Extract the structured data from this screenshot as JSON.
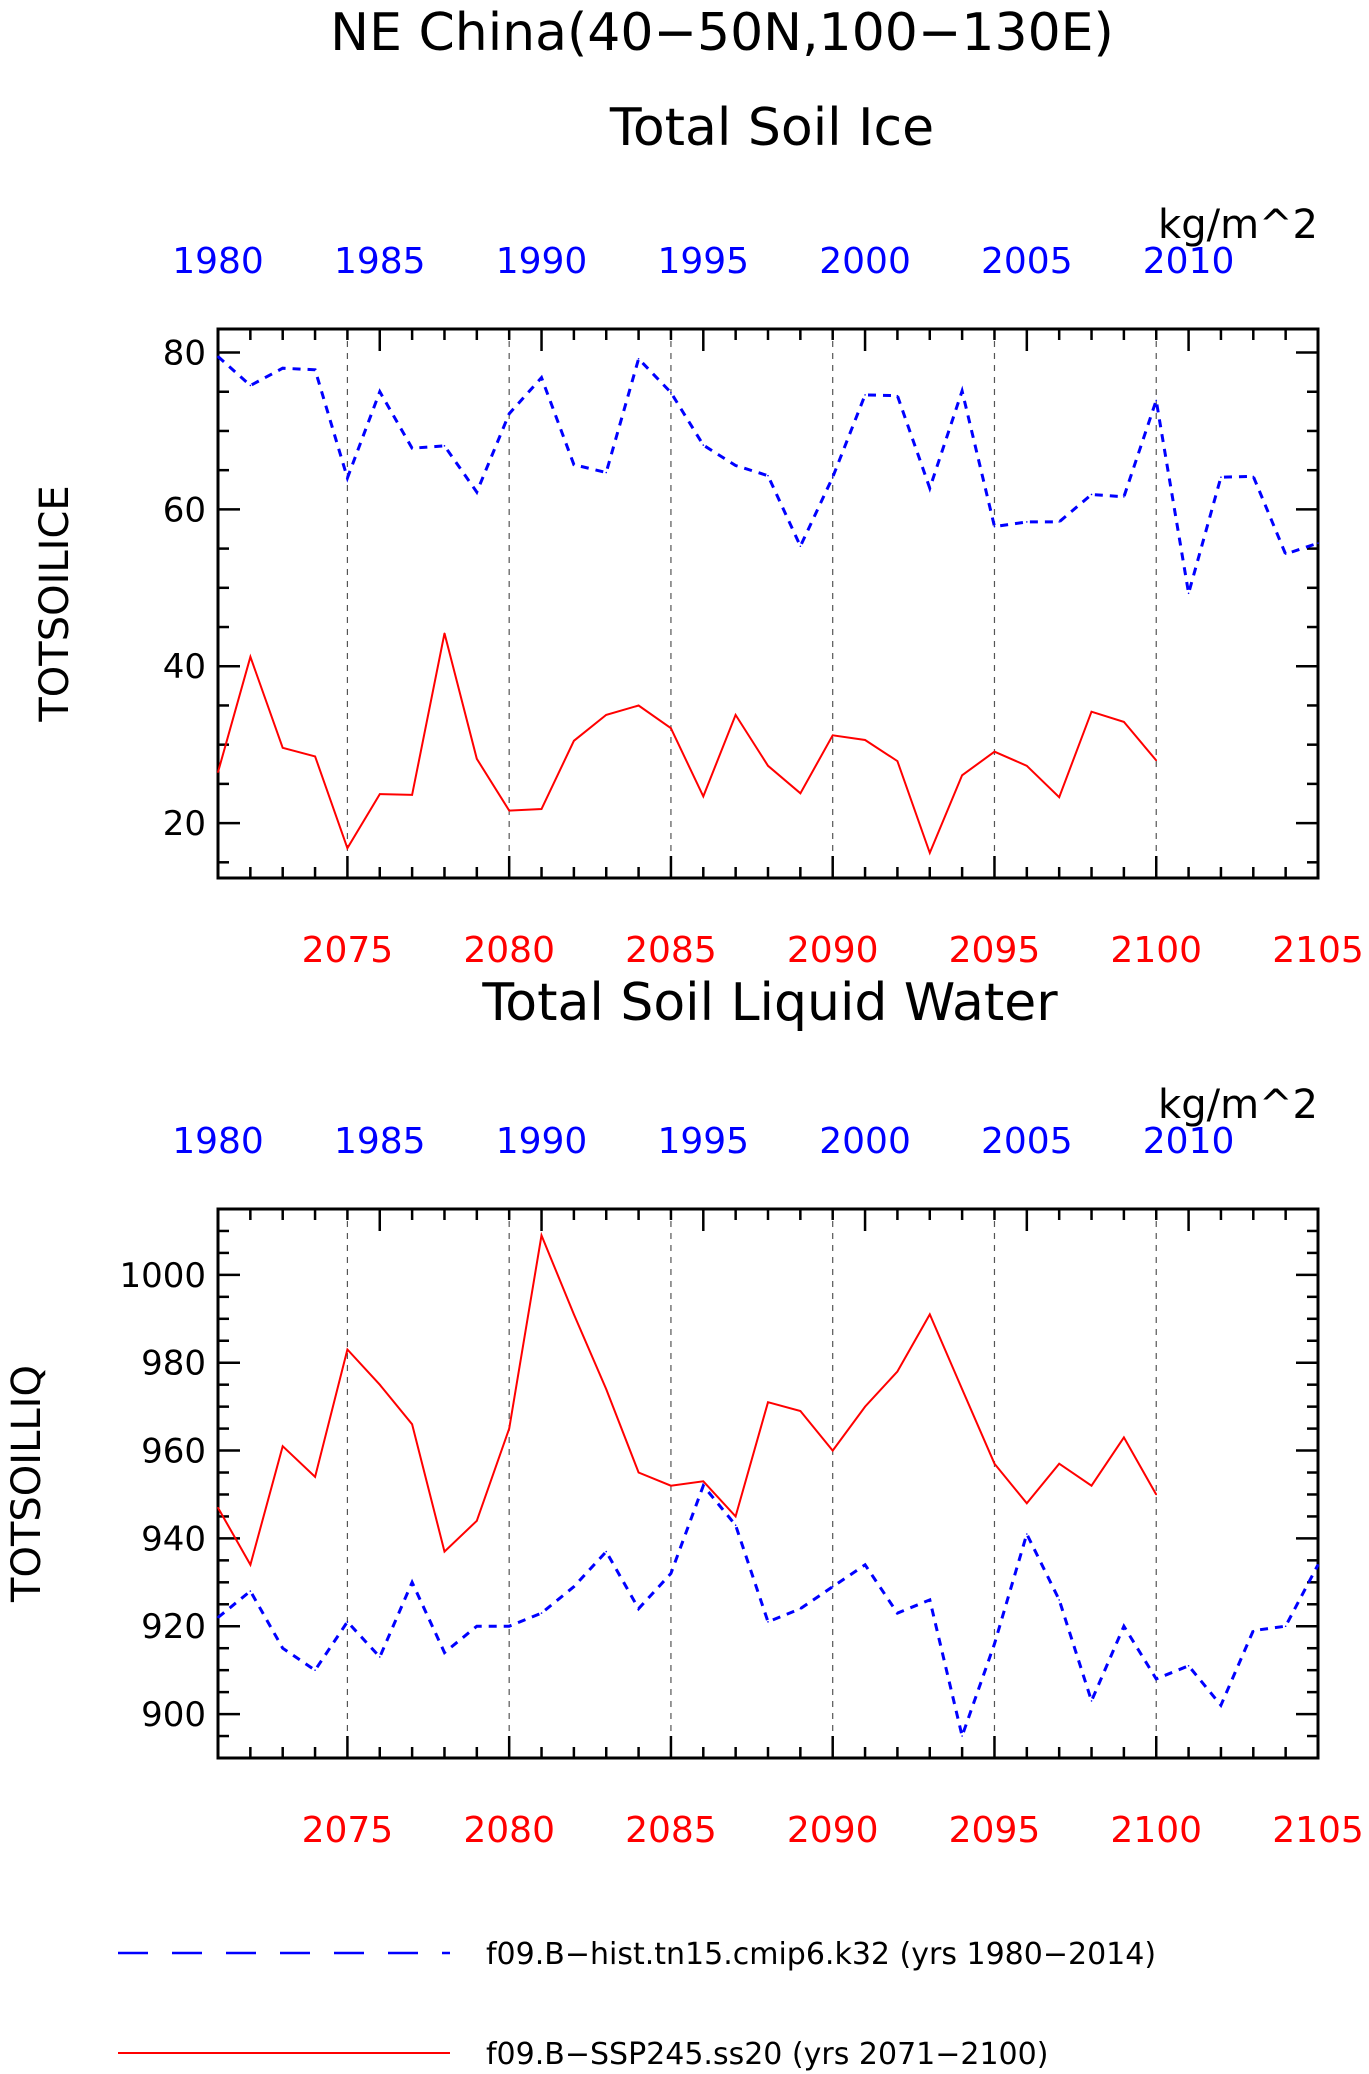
{
  "title": {
    "line1": "NE China(40−50N,100−130E)",
    "line2": "Total Soil Ice"
  },
  "colors": {
    "hist": "#0000ff",
    "ssp": "#ff0000",
    "frame": "#000000",
    "grid": "#555555"
  },
  "legend": {
    "hist_label": "f09.B−hist.tn15.cmip6.k32 (yrs 1980−2014)",
    "ssp_label": "f09.B−SSP245.ss20 (yrs 2071−2100)"
  },
  "chart_data": [
    {
      "type": "line",
      "title": "Total Soil Ice",
      "ylabel": "TOTSOILICE",
      "units": "kg/m^2",
      "ylim": [
        13,
        83
      ],
      "yticks": [
        20,
        40,
        60,
        80
      ],
      "ytick_labels": [
        "20",
        "40",
        "60",
        "80"
      ],
      "bottom_axis": {
        "range": [
          2071,
          2105
        ],
        "ticks": [
          2075,
          2080,
          2085,
          2090,
          2095,
          2100,
          2105
        ],
        "tick_labels": [
          "2075",
          "2080",
          "2085",
          "2090",
          "2095",
          "2100",
          "2105"
        ]
      },
      "top_axis": {
        "range": [
          1980,
          2014
        ],
        "ticks": [
          1980,
          1985,
          1990,
          1995,
          2000,
          2005,
          2010
        ],
        "tick_labels": [
          "1980",
          "1985",
          "1990",
          "1995",
          "2000",
          "2005",
          "2010"
        ]
      },
      "grid_x": [
        2075,
        2080,
        2085,
        2090,
        2095,
        2100
      ],
      "series": [
        {
          "name": "f09.B-hist.tn15.cmip6.k32 (yrs 1980-2014)",
          "style": "dashed",
          "x": [
            1980,
            1981,
            1982,
            1983,
            1984,
            1985,
            1986,
            1987,
            1988,
            1989,
            1990,
            1991,
            1992,
            1993,
            1994,
            1995,
            1996,
            1997,
            1998,
            1999,
            2000,
            2001,
            2002,
            2003,
            2004,
            2005,
            2006,
            2007,
            2008,
            2009,
            2010,
            2011,
            2012,
            2013,
            2014
          ],
          "y": [
            79.5,
            75.8,
            78,
            77.8,
            64,
            75,
            67.8,
            68.1,
            62.2,
            72.2,
            76.8,
            65.7,
            64.7,
            79.2,
            74.9,
            68.2,
            65.6,
            64.3,
            55.3,
            64.1,
            74.6,
            74.5,
            62.7,
            75.1,
            57.8,
            58.4,
            58.4,
            61.9,
            61.6,
            73.9,
            49.3,
            64.1,
            64.2,
            54.3,
            55.7
          ]
        },
        {
          "name": "f09.B-SSP245.ss20 (yrs 2071-2100)",
          "style": "solid",
          "x": [
            2071,
            2072,
            2073,
            2074,
            2075,
            2076,
            2077,
            2078,
            2079,
            2080,
            2081,
            2082,
            2083,
            2084,
            2085,
            2086,
            2087,
            2088,
            2089,
            2090,
            2091,
            2092,
            2093,
            2094,
            2095,
            2096,
            2097,
            2098,
            2099,
            2100
          ],
          "y": [
            26.5,
            41.2,
            29.6,
            28.5,
            16.8,
            23.7,
            23.6,
            44.2,
            28.2,
            21.6,
            21.8,
            30.5,
            33.8,
            35,
            32.1,
            23.4,
            33.8,
            27.3,
            23.8,
            31.2,
            30.6,
            27.9,
            16.2,
            26.1,
            29.1,
            27.3,
            23.3,
            34.2,
            32.9,
            28
          ]
        }
      ]
    },
    {
      "type": "line",
      "title": "Total Soil Liquid Water",
      "ylabel": "TOTSOILLIQ",
      "units": "kg/m^2",
      "ylim": [
        890,
        1015
      ],
      "yticks": [
        900,
        920,
        940,
        960,
        980,
        1000
      ],
      "ytick_labels": [
        "900",
        "920",
        "940",
        "960",
        "980",
        "1000"
      ],
      "bottom_axis": {
        "range": [
          2071,
          2105
        ],
        "ticks": [
          2075,
          2080,
          2085,
          2090,
          2095,
          2100,
          2105
        ],
        "tick_labels": [
          "2075",
          "2080",
          "2085",
          "2090",
          "2095",
          "2100",
          "2105"
        ]
      },
      "top_axis": {
        "range": [
          1980,
          2014
        ],
        "ticks": [
          1980,
          1985,
          1990,
          1995,
          2000,
          2005,
          2010
        ],
        "tick_labels": [
          "1980",
          "1985",
          "1990",
          "1995",
          "2000",
          "2005",
          "2010"
        ]
      },
      "grid_x": [
        2075,
        2080,
        2085,
        2090,
        2095,
        2100
      ],
      "series": [
        {
          "name": "f09.B-hist.tn15.cmip6.k32 (yrs 1980-2014)",
          "style": "dashed",
          "x": [
            1980,
            1981,
            1982,
            1983,
            1984,
            1985,
            1986,
            1987,
            1988,
            1989,
            1990,
            1991,
            1992,
            1993,
            1994,
            1995,
            1996,
            1997,
            1998,
            1999,
            2000,
            2001,
            2002,
            2003,
            2004,
            2005,
            2006,
            2007,
            2008,
            2009,
            2010,
            2011,
            2012,
            2013,
            2014
          ],
          "y": [
            922,
            928,
            915,
            910,
            921,
            913,
            930,
            914,
            920,
            920,
            923,
            929,
            937,
            924,
            932,
            952,
            943,
            921,
            924,
            929,
            934,
            923,
            926,
            895,
            916,
            941,
            926,
            903,
            920,
            908,
            911,
            902,
            919,
            920,
            934
          ]
        },
        {
          "name": "f09.B-SSP245.ss20 (yrs 2071-2100)",
          "style": "solid",
          "x": [
            2071,
            2072,
            2073,
            2074,
            2075,
            2076,
            2077,
            2078,
            2079,
            2080,
            2081,
            2082,
            2083,
            2084,
            2085,
            2086,
            2087,
            2088,
            2089,
            2090,
            2091,
            2092,
            2093,
            2094,
            2095,
            2096,
            2097,
            2098,
            2099,
            2100
          ],
          "y": [
            947,
            934,
            961,
            954,
            983,
            975,
            966,
            937,
            944,
            965,
            1009,
            991,
            974,
            955,
            952,
            953,
            945,
            971,
            969,
            960,
            970,
            978,
            991,
            974,
            957,
            948,
            957,
            952,
            963,
            950
          ]
        }
      ]
    }
  ]
}
